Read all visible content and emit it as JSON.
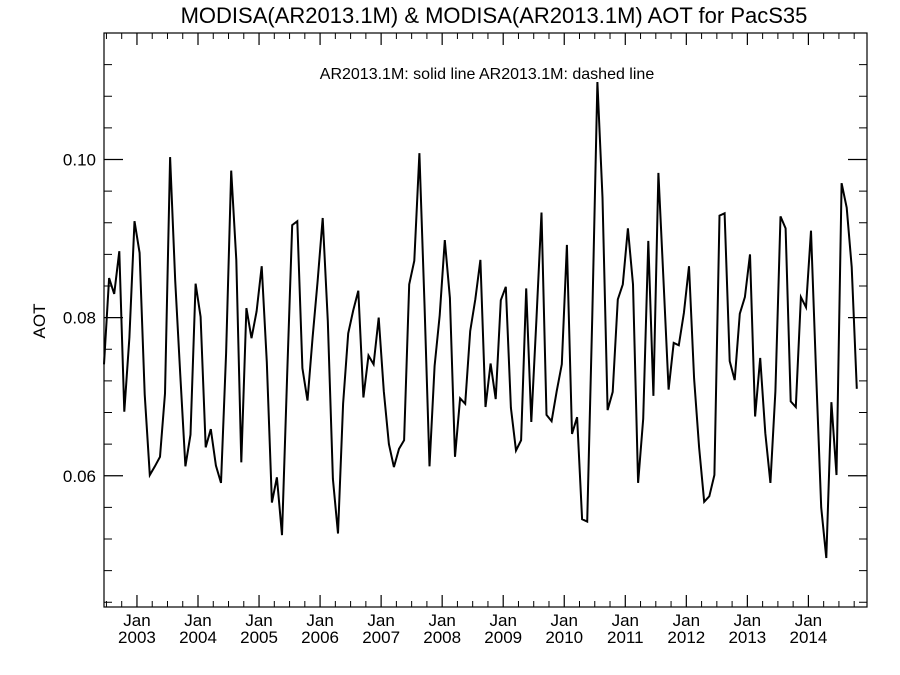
{
  "chart_data": {
    "type": "line",
    "title": "MODISA(AR2013.1M) & MODISA(AR2013.1M)  AOT for PacS35",
    "legend_text": "AR2013.1M: solid line   AR2013.1M: dashed line",
    "xlabel": "",
    "ylabel": "AOT",
    "ylim": [
      0.0434,
      0.116
    ],
    "xlim": [
      2002.46,
      2014.96
    ],
    "y_ticks": [
      0.06,
      0.08,
      0.1
    ],
    "y_tick_labels": [
      "0.06",
      "0.08",
      "0.10"
    ],
    "x_ticks": [
      {
        "month": "Jan",
        "year": "2003",
        "x": 2003.0
      },
      {
        "month": "Jan",
        "year": "2004",
        "x": 2004.0
      },
      {
        "month": "Jan",
        "year": "2005",
        "x": 2005.0
      },
      {
        "month": "Jan",
        "year": "2006",
        "x": 2006.0
      },
      {
        "month": "Jan",
        "year": "2007",
        "x": 2007.0
      },
      {
        "month": "Jan",
        "year": "2008",
        "x": 2008.0
      },
      {
        "month": "Jan",
        "year": "2009",
        "x": 2009.0
      },
      {
        "month": "Jan",
        "year": "2010",
        "x": 2010.0
      },
      {
        "month": "Jan",
        "year": "2011",
        "x": 2011.0
      },
      {
        "month": "Jan",
        "year": "2012",
        "x": 2012.0
      },
      {
        "month": "Jan",
        "year": "2013",
        "x": 2013.0
      },
      {
        "month": "Jan",
        "year": "2014",
        "x": 2014.0
      }
    ],
    "grid": false,
    "legend_placement": "top-center",
    "series": [
      {
        "name": "AR2013.1M",
        "line_style": "solid",
        "color": "#000000",
        "x_start": 2002.46,
        "x_step_months": 1,
        "values": [
          0.0741,
          0.085,
          0.083,
          0.0884,
          0.0681,
          0.0775,
          0.0922,
          0.0882,
          0.0703,
          0.0601,
          0.0612,
          0.0624,
          0.0704,
          0.1003,
          0.0847,
          0.0727,
          0.0612,
          0.0652,
          0.0843,
          0.0801,
          0.0636,
          0.0659,
          0.0613,
          0.0591,
          0.0755,
          0.0986,
          0.0873,
          0.0617,
          0.0812,
          0.0774,
          0.0808,
          0.0865,
          0.0744,
          0.0566,
          0.0598,
          0.0525,
          0.0725,
          0.0917,
          0.0922,
          0.0736,
          0.0695,
          0.0775,
          0.0846,
          0.0926,
          0.0796,
          0.0596,
          0.0527,
          0.0691,
          0.078,
          0.0809,
          0.0834,
          0.0699,
          0.0752,
          0.0741,
          0.08,
          0.0707,
          0.064,
          0.0611,
          0.0634,
          0.0645,
          0.0842,
          0.0872,
          0.1008,
          0.0817,
          0.0612,
          0.0739,
          0.0803,
          0.0898,
          0.0825,
          0.0624,
          0.0698,
          0.0691,
          0.0783,
          0.0823,
          0.0873,
          0.0687,
          0.0742,
          0.0697,
          0.0822,
          0.0839,
          0.0686,
          0.0632,
          0.0645,
          0.0837,
          0.0668,
          0.0797,
          0.0933,
          0.0677,
          0.0669,
          0.0707,
          0.0741,
          0.0892,
          0.0653,
          0.0674,
          0.0545,
          0.0542,
          0.0803,
          0.1098,
          0.0952,
          0.0683,
          0.0706,
          0.0823,
          0.0842,
          0.0913,
          0.0842,
          0.0591,
          0.0672,
          0.0897,
          0.0701,
          0.0983,
          0.0847,
          0.0709,
          0.0768,
          0.0765,
          0.0806,
          0.0865,
          0.0723,
          0.0636,
          0.0567,
          0.0574,
          0.0601,
          0.0929,
          0.0932,
          0.0745,
          0.0721,
          0.0805,
          0.0826,
          0.088,
          0.0675,
          0.0749,
          0.0654,
          0.0591,
          0.0707,
          0.0928,
          0.0913,
          0.0694,
          0.0687,
          0.0826,
          0.0813,
          0.091,
          0.073,
          0.056,
          0.0496,
          0.0693,
          0.0601,
          0.097,
          0.0939,
          0.0864,
          0.071
        ]
      }
    ]
  }
}
